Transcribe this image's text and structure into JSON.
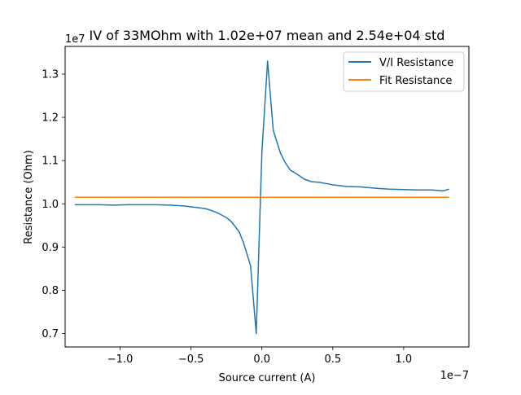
{
  "chart_data": {
    "type": "line",
    "title": "IV of 33MOhm with 1.02e+07 mean and 2.54e+04 std",
    "xlabel": "Source current (A)",
    "ylabel": "Resistance (Ohm)",
    "x_offset_label": "1e−7",
    "y_offset_label": "1e7",
    "xlim": [
      -1.388,
      1.46
    ],
    "ylim": [
      0.669,
      1.364
    ],
    "x_scale": 1e-07,
    "y_scale": 10000000.0,
    "x_ticks": [
      -1.0,
      -0.5,
      0.0,
      0.5,
      1.0
    ],
    "x_tick_labels": [
      "−1.0",
      "−0.5",
      "0.0",
      "0.5",
      "1.0"
    ],
    "y_ticks": [
      0.7,
      0.8,
      0.9,
      1.0,
      1.1,
      1.2,
      1.3
    ],
    "y_tick_labels": [
      "0.7",
      "0.8",
      "0.9",
      "1.0",
      "1.1",
      "1.2",
      "1.3"
    ],
    "grid": false,
    "legend_position": "top-right",
    "series": [
      {
        "name": "V/I Resistance",
        "color": "#1f77b4",
        "x": [
          -1.32,
          -1.25,
          -1.15,
          -1.05,
          -0.95,
          -0.85,
          -0.75,
          -0.65,
          -0.55,
          -0.45,
          -0.4,
          -0.35,
          -0.3,
          -0.25,
          -0.22,
          -0.19,
          -0.16,
          -0.13,
          -0.08,
          -0.04,
          0.0,
          0.04,
          0.08,
          0.13,
          0.16,
          0.2,
          0.25,
          0.3,
          0.35,
          0.4,
          0.45,
          0.5,
          0.55,
          0.6,
          0.7,
          0.8,
          0.9,
          1.0,
          1.1,
          1.2,
          1.28,
          1.32
        ],
        "y": [
          0.998,
          0.998,
          0.998,
          0.997,
          0.998,
          0.998,
          0.998,
          0.997,
          0.995,
          0.991,
          0.989,
          0.984,
          0.977,
          0.968,
          0.96,
          0.948,
          0.935,
          0.91,
          0.857,
          0.7,
          1.12,
          1.33,
          1.17,
          1.118,
          1.098,
          1.078,
          1.068,
          1.057,
          1.051,
          1.05,
          1.047,
          1.044,
          1.042,
          1.04,
          1.039,
          1.036,
          1.034,
          1.033,
          1.032,
          1.032,
          1.03,
          1.034
        ]
      },
      {
        "name": "Fit Resistance",
        "color": "#ff7f0e",
        "x": [
          -1.32,
          1.32
        ],
        "y": [
          1.015,
          1.015
        ]
      }
    ]
  }
}
